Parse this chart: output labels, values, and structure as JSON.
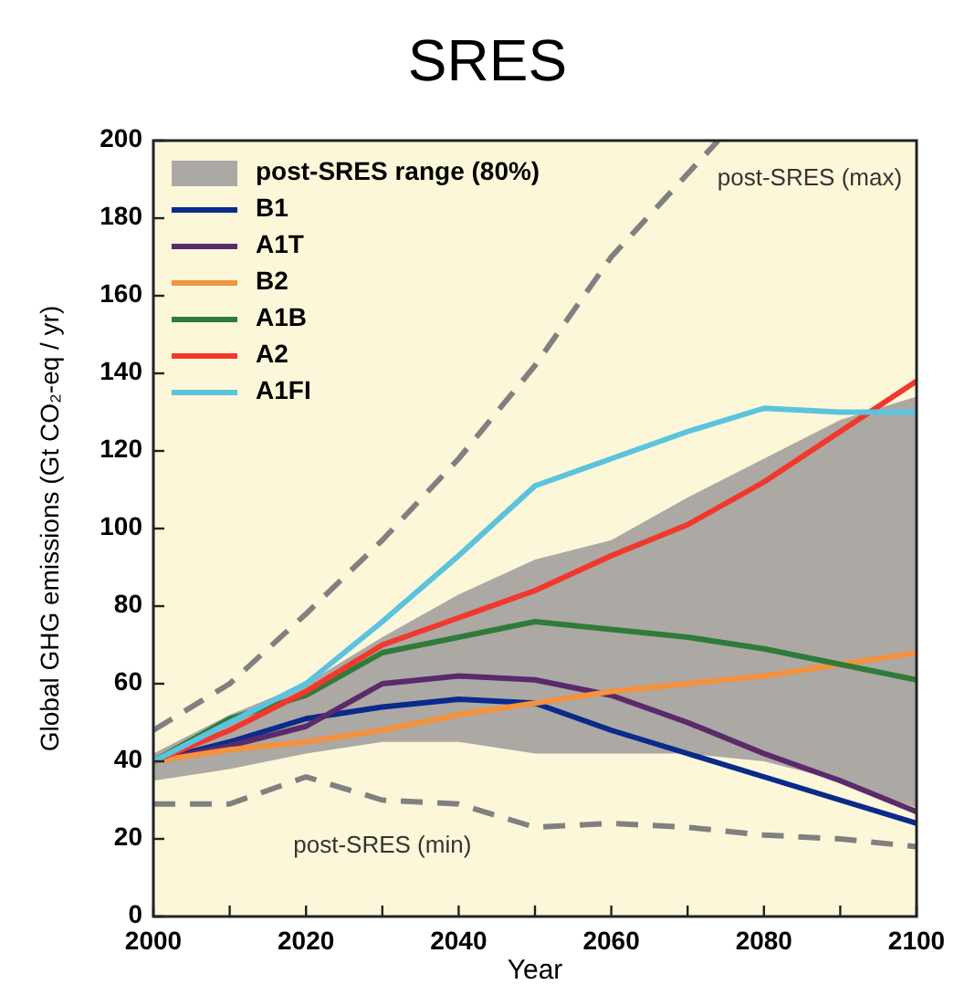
{
  "chart_data": {
    "type": "line",
    "title": "SRES",
    "xlabel": "Year",
    "ylabel": "Global GHG emissions (Gt CO₂-eq / yr)",
    "x": [
      2000,
      2010,
      2020,
      2030,
      2040,
      2050,
      2060,
      2070,
      2080,
      2090,
      2100
    ],
    "xlim": [
      2000,
      2100
    ],
    "xticks": [
      2000,
      {
        "value": 2010,
        "label": null
      },
      2020,
      {
        "value": 2030,
        "label": null
      },
      2040,
      {
        "value": 2050,
        "label": null
      },
      2060,
      {
        "value": 2070,
        "label": null
      },
      2080,
      {
        "value": 2090,
        "label": null
      },
      2100
    ],
    "ylim": [
      0,
      200
    ],
    "yticks": [
      0,
      20,
      40,
      60,
      80,
      100,
      120,
      140,
      160,
      180,
      200
    ],
    "legend": "top left",
    "grid": false,
    "series": [
      {
        "type": "area",
        "name": "post-SRES range (80%)",
        "color": "#aca8a4",
        "values": [
          null,
          null,
          null,
          null,
          null,
          null,
          null,
          null,
          null,
          null,
          null
        ],
        "upper": [
          42,
          52,
          60,
          72,
          83,
          92,
          97,
          108,
          118,
          128,
          134
        ],
        "lower": [
          35,
          38,
          42,
          45,
          45,
          42,
          42,
          42,
          40,
          35,
          28
        ]
      },
      {
        "name": "B1",
        "color": "#0a2a8c",
        "values": [
          40,
          45,
          51,
          54,
          56,
          55,
          48,
          42,
          36,
          30,
          24
        ]
      },
      {
        "name": "A1T",
        "color": "#5a2a6a",
        "values": [
          40,
          44,
          49,
          60,
          62,
          61,
          57,
          50,
          42,
          35,
          27
        ]
      },
      {
        "name": "B2",
        "color": "#f4923e",
        "values": [
          40,
          43,
          45,
          48,
          52,
          55,
          58,
          60,
          62,
          65,
          68
        ]
      },
      {
        "name": "A1B",
        "color": "#2e7b3a",
        "values": [
          40,
          51,
          57,
          68,
          72,
          76,
          74,
          72,
          69,
          65,
          61
        ]
      },
      {
        "name": "A2",
        "color": "#f2382c",
        "values": [
          40,
          48,
          58,
          70,
          77,
          84,
          93,
          101,
          112,
          125,
          138
        ]
      },
      {
        "name": "A1FI",
        "color": "#5bc3dd",
        "values": [
          40,
          50,
          60,
          76,
          93,
          111,
          118,
          125,
          131,
          130,
          130
        ]
      },
      {
        "color": "#808080",
        "line_style": "dashed",
        "x": [
          2000,
          2010,
          2020,
          2030,
          2040,
          2050,
          2060,
          2074
        ],
        "values": [
          48,
          60,
          78,
          97,
          118,
          142,
          170,
          200
        ]
      },
      {
        "color": "#808080",
        "line_style": "dashed",
        "values": [
          29,
          29,
          36,
          30,
          29,
          23,
          24,
          23,
          21,
          20,
          18
        ]
      }
    ],
    "annotations": [
      "post-SRES (max)",
      "post-SRES (min)"
    ]
  }
}
